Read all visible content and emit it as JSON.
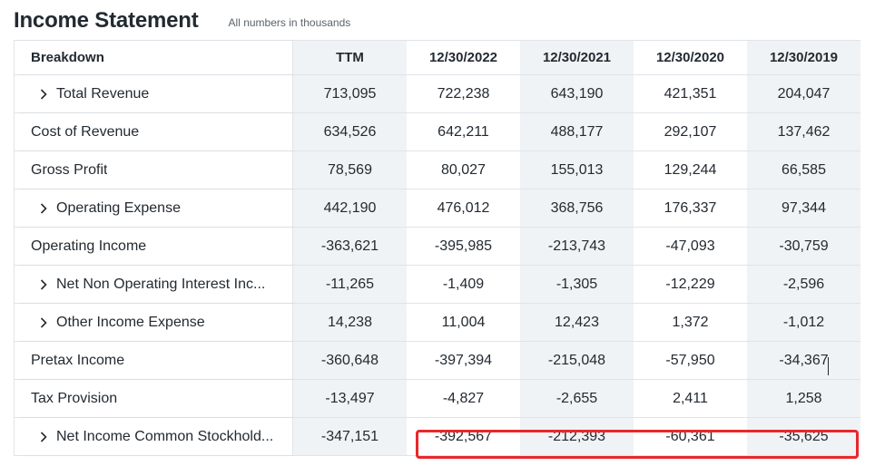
{
  "header": {
    "title": "Income Statement",
    "subtitle": "All numbers in thousands"
  },
  "columns": [
    "Breakdown",
    "TTM",
    "12/30/2022",
    "12/30/2021",
    "12/30/2020",
    "12/30/2019"
  ],
  "rows": [
    {
      "label": "Total Revenue",
      "expandable": true,
      "values": [
        "713,095",
        "722,238",
        "643,190",
        "421,351",
        "204,047"
      ]
    },
    {
      "label": "Cost of Revenue",
      "expandable": false,
      "values": [
        "634,526",
        "642,211",
        "488,177",
        "292,107",
        "137,462"
      ]
    },
    {
      "label": "Gross Profit",
      "expandable": false,
      "values": [
        "78,569",
        "80,027",
        "155,013",
        "129,244",
        "66,585"
      ]
    },
    {
      "label": "Operating Expense",
      "expandable": true,
      "values": [
        "442,190",
        "476,012",
        "368,756",
        "176,337",
        "97,344"
      ]
    },
    {
      "label": "Operating Income",
      "expandable": false,
      "values": [
        "-363,621",
        "-395,985",
        "-213,743",
        "-47,093",
        "-30,759"
      ]
    },
    {
      "label": "Net Non Operating Interest Inc...",
      "expandable": true,
      "values": [
        "-11,265",
        "-1,409",
        "-1,305",
        "-12,229",
        "-2,596"
      ]
    },
    {
      "label": "Other Income Expense",
      "expandable": true,
      "values": [
        "14,238",
        "11,004",
        "12,423",
        "1,372",
        "-1,012"
      ]
    },
    {
      "label": "Pretax Income",
      "expandable": false,
      "values": [
        "-360,648",
        "-397,394",
        "-215,048",
        "-57,950",
        "-34,367"
      ]
    },
    {
      "label": "Tax Provision",
      "expandable": false,
      "values": [
        "-13,497",
        "-4,827",
        "-2,655",
        "2,411",
        "1,258"
      ]
    },
    {
      "label": "Net Income Common Stockhold...",
      "expandable": true,
      "values": [
        "-347,151",
        "-392,567",
        "-212,393",
        "-60,361",
        "-35,625"
      ]
    }
  ],
  "colors": {
    "highlight": "#e8282b",
    "alt_column": "#f0f3f5",
    "grid": "#e0e4e9"
  }
}
